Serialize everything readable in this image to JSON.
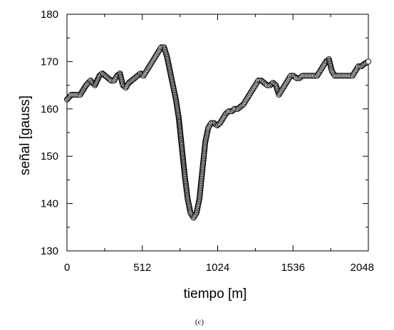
{
  "chart_data": {
    "type": "scatter",
    "xlabel": "tiempo [m]",
    "ylabel": "señal [gauss]",
    "caption": "(c)",
    "xlim": [
      0,
      2048
    ],
    "ylim": [
      130,
      180
    ],
    "x_ticks": [
      0,
      512,
      1024,
      1536,
      2048
    ],
    "x_tick_labels": [
      "0",
      "512",
      "1024",
      "1536",
      "2048"
    ],
    "y_ticks": [
      130,
      140,
      150,
      160,
      170,
      180
    ],
    "y_tick_labels": [
      "130",
      "140",
      "150",
      "160",
      "170",
      "180"
    ],
    "grid": false,
    "marker": "open-circle",
    "series": [
      {
        "x": [
          0,
          30,
          60,
          90,
          100,
          130,
          160,
          190,
          220,
          240,
          260,
          280,
          300,
          320,
          340,
          360,
          380,
          400,
          420,
          440,
          460,
          480,
          500,
          520,
          540,
          560,
          580,
          600,
          620,
          640,
          660,
          680,
          700,
          720,
          740,
          760,
          780,
          800,
          820,
          840,
          860,
          880,
          900,
          910,
          920,
          930,
          940,
          960,
          980,
          1000,
          1020,
          1040,
          1060,
          1080,
          1100,
          1120,
          1140,
          1160,
          1180,
          1200,
          1220,
          1240,
          1260,
          1280,
          1300,
          1320,
          1340,
          1360,
          1380,
          1400,
          1420,
          1440,
          1460,
          1480,
          1500,
          1520,
          1540,
          1560,
          1580,
          1600,
          1620,
          1640,
          1660,
          1680,
          1700,
          1720,
          1740,
          1760,
          1780,
          1800,
          1820,
          1840,
          1860,
          1880,
          1900,
          1920,
          1940,
          1960,
          1980,
          2000,
          2020,
          2048
        ],
        "y": [
          162,
          163,
          163,
          163,
          163.5,
          165,
          166,
          165,
          167,
          167.5,
          167,
          166.5,
          166,
          166,
          167,
          167.5,
          165,
          164.5,
          165.5,
          166,
          166.5,
          167,
          167.5,
          167,
          168,
          169,
          170,
          171,
          172,
          173,
          173,
          171,
          168,
          165,
          162,
          158,
          152,
          146,
          141,
          138,
          137,
          138,
          141,
          144,
          147,
          150,
          153,
          156,
          157,
          157,
          156.5,
          157,
          158,
          159,
          159.5,
          159.5,
          160,
          160,
          160.5,
          161,
          162,
          163,
          164,
          165,
          166,
          166,
          165.5,
          165,
          165,
          165.5,
          165,
          163,
          164,
          165,
          166,
          167,
          167,
          166.5,
          166.5,
          167,
          167,
          167,
          167,
          167,
          167,
          168,
          169,
          170,
          170.5,
          168,
          167,
          167,
          167,
          167,
          167,
          167,
          167,
          168,
          169,
          169,
          169.5,
          170
        ]
      }
    ]
  }
}
